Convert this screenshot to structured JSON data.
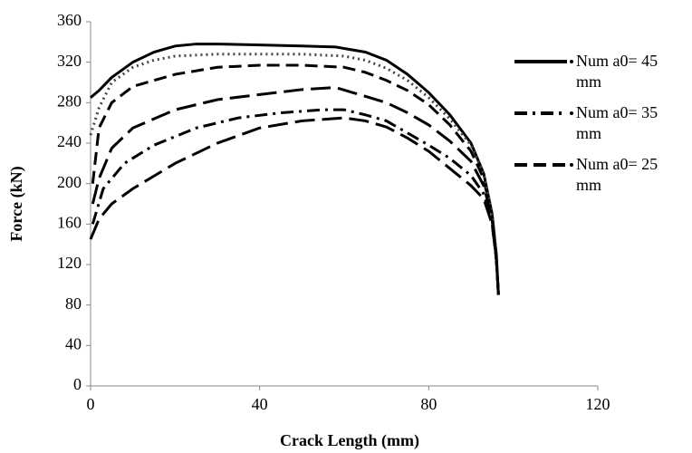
{
  "chart_data": {
    "type": "line",
    "xlabel": "Crack Length (mm)",
    "ylabel": "Force (kN)",
    "xlim": [
      0,
      120
    ],
    "xticks": [
      0,
      40,
      80,
      120
    ],
    "ylim": [
      0,
      360
    ],
    "yticks": [
      0,
      40,
      80,
      120,
      160,
      200,
      240,
      280,
      320,
      360
    ],
    "grid": false,
    "legend": "right",
    "series": [
      {
        "name": "Num a0= 45 mm",
        "color": "#000000",
        "style": "solid",
        "x": [
          0,
          2,
          5,
          10,
          15,
          20,
          25,
          30,
          40,
          50,
          58,
          65,
          70,
          75,
          80,
          85,
          90,
          93,
          95,
          96,
          96.5
        ],
        "values": [
          285,
          292,
          305,
          320,
          330,
          336,
          338,
          338,
          337,
          336,
          335,
          330,
          322,
          308,
          290,
          268,
          240,
          210,
          170,
          130,
          90
        ]
      },
      {
        "name": "Num a0= 35 mm",
        "color": "#000000",
        "style": "dash-dot",
        "x": [
          0.5,
          3,
          8,
          15,
          25,
          35,
          45,
          55,
          60,
          65,
          70,
          75,
          80,
          85,
          90,
          93,
          95,
          96,
          96.5
        ],
        "values": [
          160,
          195,
          220,
          238,
          255,
          265,
          270,
          273,
          273,
          268,
          262,
          250,
          238,
          225,
          208,
          190,
          160,
          125,
          90
        ]
      },
      {
        "name": "Num a0= 25 mm",
        "color": "#000000",
        "style": "dashed",
        "x": [
          0.5,
          2,
          5,
          10,
          20,
          30,
          40,
          50,
          60,
          65,
          70,
          75,
          80,
          85,
          90,
          93,
          95,
          96,
          96.5
        ],
        "values": [
          200,
          255,
          280,
          296,
          308,
          315,
          317,
          317,
          315,
          310,
          302,
          292,
          278,
          258,
          232,
          205,
          165,
          125,
          90
        ]
      },
      {
        "color": "#444444",
        "style": "dotted",
        "x": [
          0,
          2,
          5,
          10,
          15,
          20,
          30,
          40,
          50,
          60,
          65,
          70,
          75,
          80,
          85,
          90,
          93,
          95,
          96,
          96.5
        ],
        "values": [
          248,
          275,
          300,
          315,
          322,
          326,
          328,
          328,
          328,
          326,
          322,
          314,
          302,
          285,
          264,
          238,
          210,
          170,
          130,
          90
        ]
      },
      {
        "color": "#000000",
        "style": "long-dash",
        "x": [
          0.5,
          2,
          5,
          10,
          20,
          30,
          40,
          50,
          58,
          62,
          70,
          75,
          80,
          85,
          90,
          93,
          95,
          96,
          96.5
        ],
        "values": [
          180,
          205,
          235,
          255,
          273,
          283,
          288,
          293,
          295,
          290,
          280,
          270,
          258,
          242,
          222,
          198,
          165,
          125,
          90
        ]
      },
      {
        "color": "#000000",
        "style": "long-dash",
        "x": [
          0,
          2,
          5,
          10,
          20,
          30,
          40,
          50,
          60,
          65,
          70,
          75,
          80,
          85,
          90,
          93,
          95,
          96,
          96.5
        ],
        "values": [
          145,
          165,
          180,
          195,
          220,
          240,
          255,
          262,
          265,
          262,
          256,
          245,
          232,
          215,
          198,
          185,
          160,
          125,
          90
        ]
      }
    ]
  }
}
